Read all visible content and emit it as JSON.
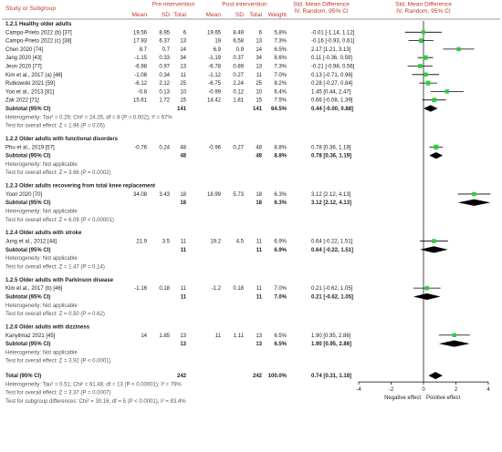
{
  "chart_data": {
    "type": "forest",
    "header": {
      "study_or_subgroup": "Study or Subgroup",
      "pre": "Pre-intervention",
      "post": "Post-intervention",
      "mean": "Mean",
      "sd": "SD",
      "total": "Total",
      "weight": "Weight",
      "smd": "Std. Mean Difference",
      "smd_method": "IV, Random, 95% CI"
    },
    "axis": {
      "min": -4,
      "max": 4,
      "ticks": [
        "-4",
        "-2",
        "0",
        "2",
        "4"
      ],
      "left_label": "Negative effect",
      "right_label": "Positive effect"
    },
    "subgroups": [
      {
        "title": "1.2.1 Healthy older adults",
        "studies": [
          {
            "name": "Campo-Prieto 2022 (b) [37]",
            "pre_mean": "19.56",
            "pre_sd": "8.95",
            "pre_n": "6",
            "post_mean": "19.65",
            "post_sd": "8.49",
            "post_n": "6",
            "weight": "5.8%",
            "ci_text": "-0.01 [-1.14, 1.12]",
            "est": -0.01,
            "lo": -1.14,
            "hi": 1.12
          },
          {
            "name": "Campo-Prieto 2022 (c) [38]",
            "pre_mean": "17.93",
            "pre_sd": "6.37",
            "pre_n": "13",
            "post_mean": "19",
            "post_sd": "6.58",
            "post_n": "13",
            "weight": "7.3%",
            "ci_text": "-0.16 [-0.93, 0.61]",
            "est": -0.16,
            "lo": -0.93,
            "hi": 0.61
          },
          {
            "name": "Chen 2020 [74]",
            "pre_mean": "8.7",
            "pre_sd": "0.7",
            "pre_n": "14",
            "post_mean": "6.9",
            "post_sd": "0.9",
            "post_n": "14",
            "weight": "6.5%",
            "ci_text": "2.17 [1.21, 3.13]",
            "est": 2.17,
            "lo": 1.21,
            "hi": 3.13
          },
          {
            "name": "Jang 2020 [43]",
            "pre_mean": "-1.15",
            "pre_sd": "0.33",
            "pre_n": "34",
            "post_mean": "-1.19",
            "post_sd": "0.37",
            "post_n": "34",
            "weight": "8.6%",
            "ci_text": "0.11 [-0.36, 0.59]",
            "est": 0.11,
            "lo": -0.36,
            "hi": 0.59
          },
          {
            "name": "Jeon 2020 [77]",
            "pre_mean": "-6.98",
            "pre_sd": "0.97",
            "pre_n": "13",
            "post_mean": "-6.78",
            "post_sd": "0.89",
            "post_n": "13",
            "weight": "7.3%",
            "ci_text": "-0.21 [-0.98, 0.56]",
            "est": -0.21,
            "lo": -0.98,
            "hi": 0.56
          },
          {
            "name": "Kim et al., 2017 (a) [46]",
            "pre_mean": "-1.08",
            "pre_sd": "0.34",
            "pre_n": "11",
            "post_mean": "-1.12",
            "post_sd": "0.27",
            "post_n": "11",
            "weight": "7.0%",
            "ci_text": "0.13 [-0.71, 0.96]",
            "est": 0.13,
            "lo": -0.71,
            "hi": 0.96
          },
          {
            "name": "Rutkowski 2021 [59]",
            "pre_mean": "-6.12",
            "pre_sd": "2.12",
            "pre_n": "25",
            "post_mean": "-6.75",
            "post_sd": "2.24",
            "post_n": "25",
            "weight": "8.2%",
            "ci_text": "0.28 [-0.27, 0.84]",
            "est": 0.28,
            "lo": -0.27,
            "hi": 0.84
          },
          {
            "name": "Yoo et al., 2013 [81]",
            "pre_mean": "-0.8",
            "pre_sd": "0.13",
            "pre_n": "10",
            "post_mean": "-0.99",
            "post_sd": "0.12",
            "post_n": "10",
            "weight": "6.4%",
            "ci_text": "1.45 [0.44, 2.47]",
            "est": 1.45,
            "lo": 0.44,
            "hi": 2.47
          },
          {
            "name": "Zak 2022 [71]",
            "pre_mean": "15.61",
            "pre_sd": "1.72",
            "pre_n": "15",
            "post_mean": "14.42",
            "post_sd": "1.81",
            "post_n": "15",
            "weight": "7.5%",
            "ci_text": "0.66 [-0.08, 1.39]",
            "est": 0.66,
            "lo": -0.08,
            "hi": 1.39
          }
        ],
        "subtotal": {
          "label": "Subtotal (95% CI)",
          "pre_n": "141",
          "post_n": "141",
          "weight": "64.5%",
          "ci_text": "0.44 [-0.00, 0.88]",
          "est": 0.44,
          "lo": 0.0,
          "hi": 0.88
        },
        "heterogeneity": "Heterogeneity: Tau² = 0.29; Chi² = 24.35, df = 8 (P = 0.002); I² = 67%",
        "overall_test": "Test for overall effect: Z = 1.96 (P = 0.05)"
      },
      {
        "title": "1.2.2 Older adults with functional disorders",
        "studies": [
          {
            "name": "Phu et al., 2019 [57]",
            "pre_mean": "-0.76",
            "pre_sd": "0.24",
            "pre_n": "48",
            "post_mean": "-0.96",
            "post_sd": "0.27",
            "post_n": "48",
            "weight": "8.8%",
            "ci_text": "0.78 [0.36, 1.19]",
            "est": 0.78,
            "lo": 0.36,
            "hi": 1.19
          }
        ],
        "subtotal": {
          "label": "Subtotal (95% CI)",
          "pre_n": "48",
          "post_n": "48",
          "weight": "8.8%",
          "ci_text": "0.78 [0.36, 1.19]",
          "est": 0.78,
          "lo": 0.36,
          "hi": 1.19
        },
        "heterogeneity": "Heterogeneity: Not applicable",
        "overall_test": "Test for overall effect: Z = 3.66 (P = 0.0002)"
      },
      {
        "title": "1.2.3 Older adults recovering from total knee replacement",
        "studies": [
          {
            "name": "Yoon 2020 [70]",
            "pre_mean": "34.08",
            "pre_sd": "3.43",
            "pre_n": "18",
            "post_mean": "18.99",
            "post_sd": "5.73",
            "post_n": "18",
            "weight": "6.3%",
            "ci_text": "3.12 [2.12, 4.13]",
            "est": 3.12,
            "lo": 2.12,
            "hi": 4.13
          }
        ],
        "subtotal": {
          "label": "Subtotal (95% CI)",
          "pre_n": "18",
          "post_n": "18",
          "weight": "6.3%",
          "ci_text": "3.12 [2.12, 4.13]",
          "est": 3.12,
          "lo": 2.12,
          "hi": 4.13
        },
        "heterogeneity": "Heterogeneity: Not applicable",
        "overall_test": "Test for overall effect: Z = 6.09 (P < 0.00001)"
      },
      {
        "title": "1.2.4 Older adults with stroke",
        "studies": [
          {
            "name": "Jung et al., 2012 [44]",
            "pre_mean": "21.9",
            "pre_sd": "3.5",
            "pre_n": "11",
            "post_mean": "19.2",
            "post_sd": "4.5",
            "post_n": "11",
            "weight": "6.9%",
            "ci_text": "0.64 [-0.22, 1.51]",
            "est": 0.64,
            "lo": -0.22,
            "hi": 1.51
          }
        ],
        "subtotal": {
          "label": "Subtotal (95% CI)",
          "pre_n": "11",
          "post_n": "11",
          "weight": "6.9%",
          "ci_text": "0.64 [-0.22, 1.51]",
          "est": 0.64,
          "lo": -0.22,
          "hi": 1.51
        },
        "heterogeneity": "Heterogeneity: Not applicable",
        "overall_test": "Test for overall effect: Z = 1.47 (P = 0.14)"
      },
      {
        "title": "1.2.5 Older adults with Parkinson disease",
        "studies": [
          {
            "name": "Kim et al., 2017 (b) [46]",
            "pre_mean": "-1.16",
            "pre_sd": "0.18",
            "pre_n": "11",
            "post_mean": "-1.2",
            "post_sd": "0.18",
            "post_n": "11",
            "weight": "7.0%",
            "ci_text": "0.21 [-0.62, 1.05]",
            "est": 0.21,
            "lo": -0.62,
            "hi": 1.05
          }
        ],
        "subtotal": {
          "label": "Subtotal (95% CI)",
          "pre_n": "11",
          "post_n": "11",
          "weight": "7.0%",
          "ci_text": "0.21 [-0.62, 1.05]",
          "est": 0.21,
          "lo": -0.62,
          "hi": 1.05
        },
        "heterogeneity": "Heterogeneity: Not applicable",
        "overall_test": "Test for overall effect: Z = 0.50 (P = 0.62)"
      },
      {
        "title": "1.2.6 Older adults with dizziness",
        "studies": [
          {
            "name": "Kanyilmaz 2021 [45]",
            "pre_mean": "14",
            "pre_sd": "1.85",
            "pre_n": "13",
            "post_mean": "11",
            "post_sd": "1.11",
            "post_n": "13",
            "weight": "6.5%",
            "ci_text": "1.90 [0.95, 2.86]",
            "est": 1.9,
            "lo": 0.95,
            "hi": 2.86
          }
        ],
        "subtotal": {
          "label": "Subtotal (95% CI)",
          "pre_n": "13",
          "post_n": "13",
          "weight": "6.5%",
          "ci_text": "1.90 [0.95, 2.86]",
          "est": 1.9,
          "lo": 0.95,
          "hi": 2.86
        },
        "heterogeneity": "Heterogeneity: Not applicable",
        "overall_test": "Test for overall effect: Z = 3.92 (P < 0.0001)"
      }
    ],
    "total": {
      "label": "Total (95% CI)",
      "pre_n": "242",
      "post_n": "242",
      "weight": "100.0%",
      "ci_text": "0.74 [0.31, 1.18]",
      "est": 0.74,
      "lo": 0.31,
      "hi": 1.18
    },
    "footer": [
      "Heterogeneity: Tau² = 0.51; Chi² = 61.48, df = 13 (P < 0.00001); I² = 79%",
      "Test for overall effect: Z = 3.37 (P = 0.0007)",
      "Test for subgroup differences: Chi² = 30.16, df = 5 (P < 0.0001), I² = 83.4%"
    ],
    "colors": {
      "header": "#c0392b",
      "point": "#2ecc40",
      "ci_line": "#000000"
    }
  }
}
